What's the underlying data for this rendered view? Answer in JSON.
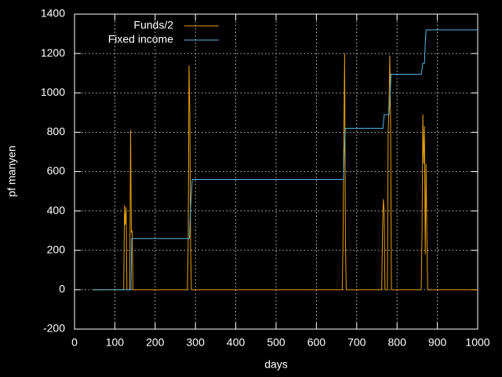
{
  "chart_data": {
    "type": "line",
    "x_label": "days",
    "y_label": "pf manyen",
    "xlim": [
      0,
      1000
    ],
    "xticks": [
      0,
      100,
      200,
      300,
      400,
      500,
      600,
      700,
      800,
      900,
      1000
    ],
    "ylim": [
      -200,
      1400
    ],
    "yticks": [
      -200,
      0,
      200,
      400,
      600,
      800,
      1000,
      1200,
      1400
    ],
    "grid": true,
    "legend": "top-left",
    "series": [
      {
        "name": "Funds/2",
        "color": "#e69f00",
        "x": [
          45,
          122,
          124,
          126,
          128,
          130,
          132,
          137,
          139,
          141,
          143,
          145,
          147,
          280,
          282,
          284,
          286,
          288,
          290,
          292,
          664,
          666,
          668,
          670,
          672,
          674,
          676,
          762,
          764,
          766,
          768,
          770,
          772,
          776,
          778,
          780,
          782,
          784,
          786,
          858,
          860,
          862,
          864,
          866,
          868,
          870,
          872,
          874,
          876,
          1000
        ],
        "values": [
          0,
          0,
          430,
          330,
          420,
          0,
          0,
          0,
          810,
          290,
          300,
          0,
          0,
          0,
          250,
          1140,
          900,
          200,
          0,
          0,
          0,
          250,
          780,
          1200,
          250,
          0,
          0,
          0,
          300,
          460,
          400,
          0,
          0,
          0,
          800,
          940,
          1190,
          860,
          0,
          0,
          0,
          290,
          890,
          640,
          830,
          180,
          640,
          280,
          0,
          0
        ]
      },
      {
        "name": "Fixed income",
        "color": "#56b4e9",
        "x": [
          45,
          140,
          142,
          285,
          288,
          292,
          667,
          669,
          672,
          765,
          768,
          780,
          782,
          785,
          860,
          864,
          868,
          870,
          872,
          1000
        ],
        "values": [
          0,
          0,
          260,
          260,
          420,
          560,
          560,
          700,
          820,
          820,
          890,
          890,
          950,
          1095,
          1095,
          1150,
          1150,
          1250,
          1320,
          1320
        ]
      }
    ]
  }
}
